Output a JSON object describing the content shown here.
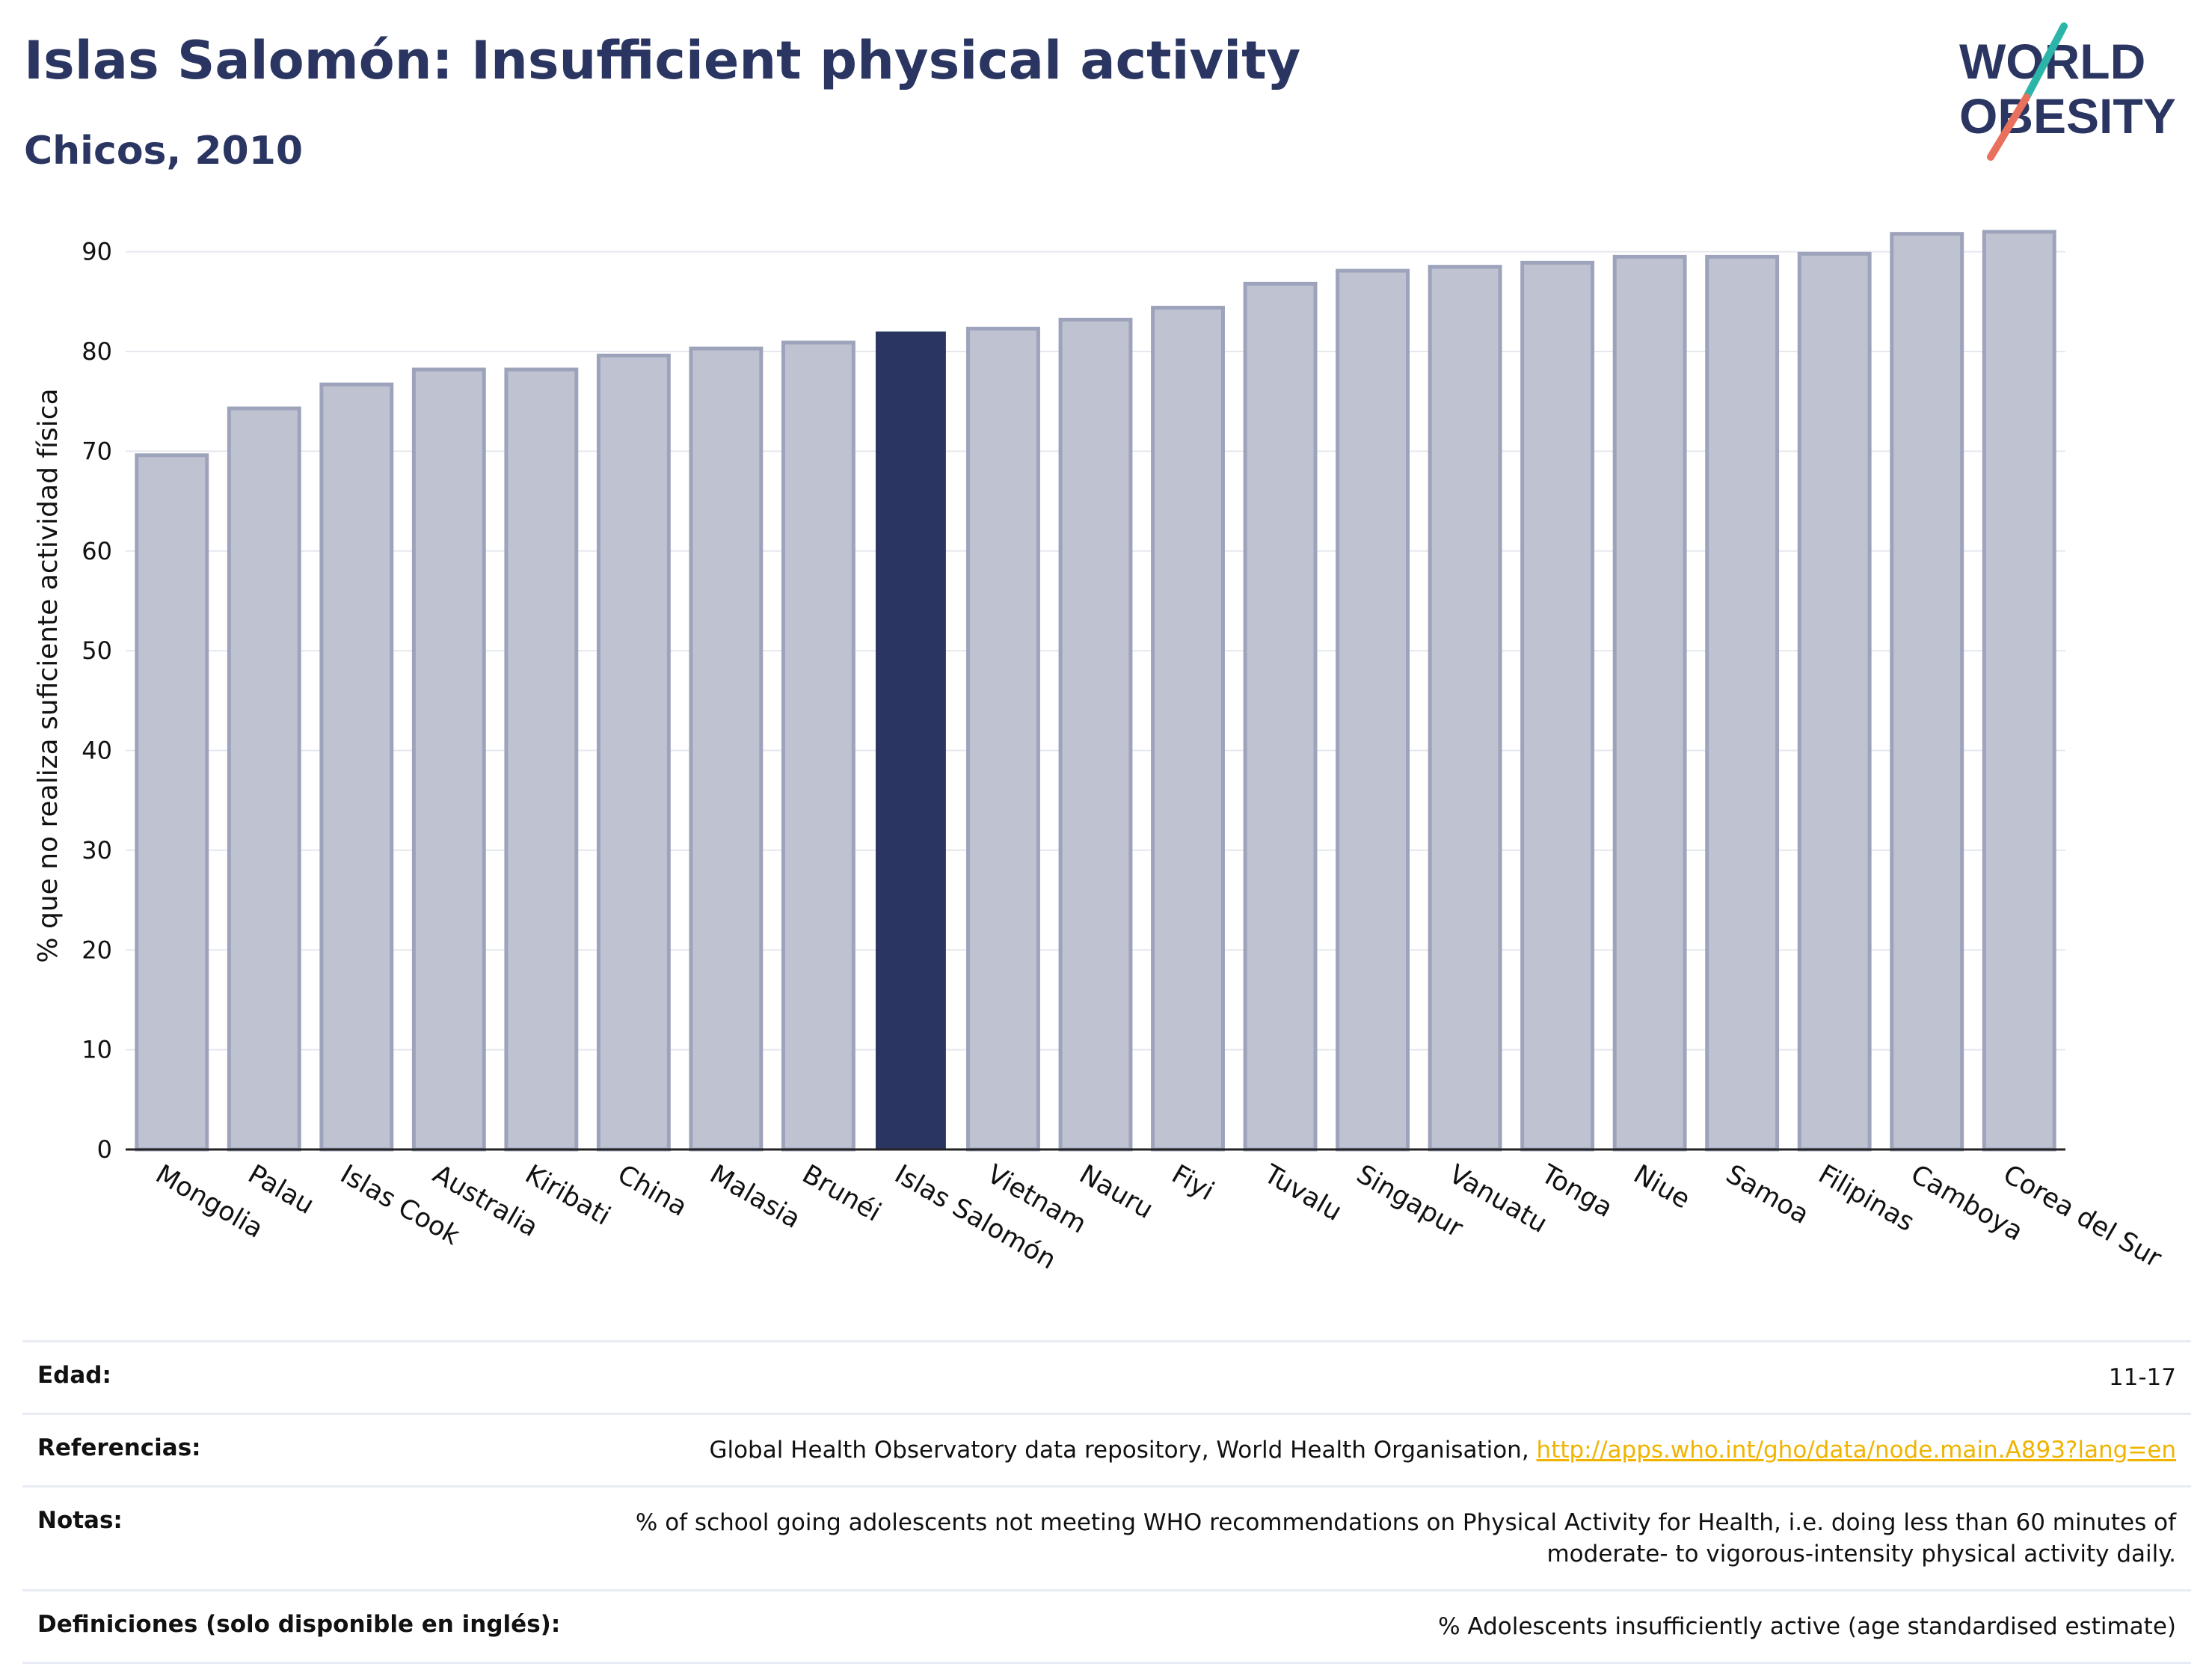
{
  "header": {
    "title": "Islas Salomón: Insufficient physical activity",
    "subtitle": "Chicos, 2010",
    "logo_line1": "WORLD",
    "logo_line2": "OBESITY"
  },
  "colors": {
    "highlight": "#2a3561",
    "bar": "#bfc3d1",
    "bar_edge": "#9da3bb",
    "link": "#f0b400",
    "logo_teal": "#2bb5a8",
    "logo_red": "#e8705c"
  },
  "chart_data": {
    "type": "bar",
    "title": "Islas Salomón: Insufficient physical activity",
    "subtitle": "Chicos, 2010",
    "xlabel": "",
    "ylabel": "% que no realiza suficiente actividad física",
    "ylim": [
      0,
      95
    ],
    "yticks": [
      0,
      10,
      20,
      30,
      40,
      50,
      60,
      70,
      80,
      90
    ],
    "grid": true,
    "highlight": "Islas Salomón",
    "categories": [
      "Mongolia",
      "Palau",
      "Islas Cook",
      "Australia",
      "Kiribati",
      "China",
      "Malasia",
      "Brunéi",
      "Islas Salomón",
      "Vietnam",
      "Nauru",
      "Fiyi",
      "Tuvalu",
      "Singapur",
      "Vanuatu",
      "Tonga",
      "Niue",
      "Samoa",
      "Filipinas",
      "Camboya",
      "Corea del Sur"
    ],
    "values": [
      69.6,
      74.3,
      76.7,
      78.2,
      78.2,
      79.6,
      80.3,
      80.9,
      82.0,
      82.3,
      83.2,
      84.4,
      86.8,
      88.1,
      88.5,
      88.9,
      89.5,
      89.5,
      89.8,
      91.8,
      92.0
    ]
  },
  "meta": {
    "age_label": "Edad:",
    "age_value": "11-17",
    "references_label": "Referencias:",
    "references_text": "Global Health Observatory data repository, World Health Organisation, ",
    "references_link": "http://apps.who.int/gho/data/node.main.A893?lang=en",
    "notes_label": "Notas:",
    "notes_value": "% of school going adolescents not meeting WHO recommendations on Physical Activity for Health, i.e. doing less than 60 minutes of moderate- to vigorous-intensity physical activity daily.",
    "definitions_label": "Definiciones (solo disponible en inglés):",
    "definitions_value": "% Adolescents insufficiently active (age standardised estimate)"
  }
}
